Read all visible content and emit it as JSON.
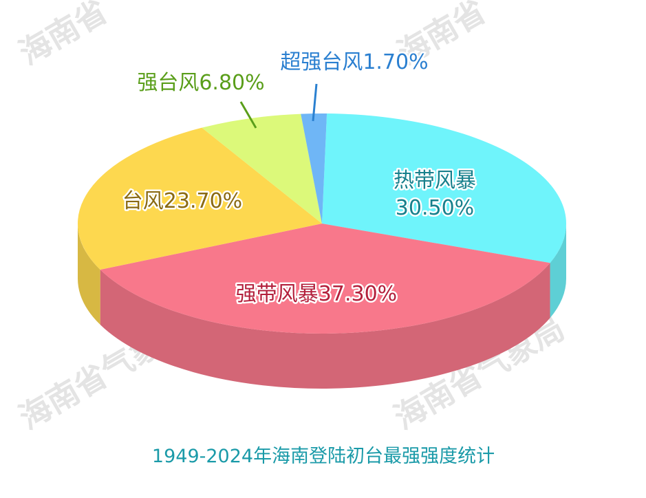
{
  "chart_data": {
    "type": "pie3d",
    "title": "1949-2024年海南登陆初台最强强度统计",
    "categories": [
      "热带风暴",
      "强带风暴",
      "台风",
      "强台风",
      "超强台风"
    ],
    "values": [
      30.5,
      37.3,
      23.7,
      6.8,
      1.7
    ],
    "value_labels": [
      "30.50%",
      "37.30%",
      "23.70%",
      "6.80%",
      "1.70%"
    ],
    "colors": [
      "#6ff4fb",
      "#f8788b",
      "#fdd84f",
      "#dcf97a",
      "#6fb6f6"
    ],
    "watermarks": [
      "海南省",
      "海南省",
      "海南省气象局",
      "海南省气象局"
    ]
  }
}
